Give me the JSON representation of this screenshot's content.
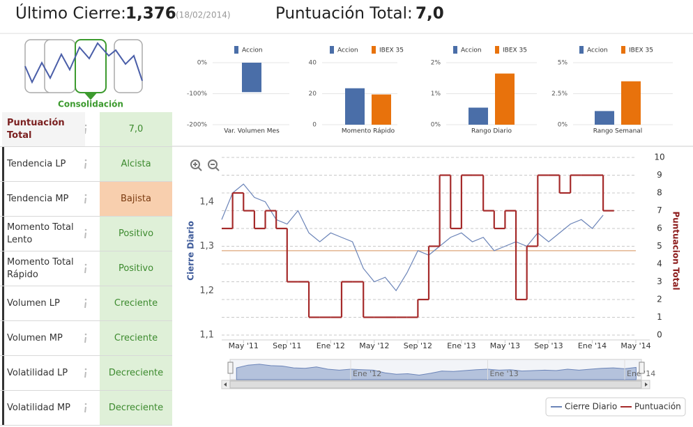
{
  "header": {
    "label1": "Último Cierre:",
    "value1": "1,376",
    "date": "(18/02/2014)",
    "label2": "Puntuación Total:",
    "value2": "7,0"
  },
  "icon_label": "Consolidación",
  "table": {
    "rows": [
      {
        "label": "Puntuación Total",
        "value": "7,0",
        "color": "#dff0d8"
      },
      {
        "label": "Tendencia LP",
        "value": "Alcista",
        "color": "#dff0d8"
      },
      {
        "label": "Tendencia MP",
        "value": "Bajista",
        "color": "#f8cfae"
      },
      {
        "label": "Momento Total Lento",
        "value": "Positivo",
        "color": "#dff0d8"
      },
      {
        "label": "Momento Total Rápido",
        "value": "Positivo",
        "color": "#dff0d8"
      },
      {
        "label": "Volumen LP",
        "value": "Creciente",
        "color": "#dff0d8"
      },
      {
        "label": "Volumen MP",
        "value": "Creciente",
        "color": "#dff0d8"
      },
      {
        "label": "Volatilidad LP",
        "value": "Decreciente",
        "color": "#dff0d8"
      },
      {
        "label": "Volatilidad MP",
        "value": "Decreciente",
        "color": "#dff0d8"
      }
    ]
  },
  "chart_data": [
    {
      "type": "bar",
      "categories": [
        "Var. Volumen Mes"
      ],
      "series": [
        {
          "name": "Accion",
          "color": "#4a6ea8",
          "values": [
            -95
          ]
        }
      ],
      "ylim": [
        -200,
        0
      ],
      "yticks": [
        {
          "value": 0,
          "label": "0%"
        },
        {
          "value": -100,
          "label": "-100%"
        },
        {
          "value": -200,
          "label": "-200%"
        }
      ]
    },
    {
      "type": "bar",
      "categories": [
        "Momento Rápido"
      ],
      "series": [
        {
          "name": "Accion",
          "color": "#4a6ea8",
          "values": [
            23.5
          ]
        },
        {
          "name": "IBEX 35",
          "color": "#e8720c",
          "values": [
            19.5
          ]
        }
      ],
      "ylim": [
        0,
        40
      ],
      "yticks": [
        0,
        20,
        40
      ]
    },
    {
      "type": "bar",
      "categories": [
        "Rango Diario"
      ],
      "series": [
        {
          "name": "Accion",
          "color": "#4a6ea8",
          "values": [
            0.55
          ]
        },
        {
          "name": "IBEX 35",
          "color": "#e8720c",
          "values": [
            1.65
          ]
        }
      ],
      "ylim": [
        0,
        2
      ],
      "yticks": [
        {
          "value": 0,
          "label": "0%"
        },
        {
          "value": 1,
          "label": "1%"
        },
        {
          "value": 2,
          "label": "2%"
        }
      ]
    },
    {
      "type": "bar",
      "categories": [
        "Rango Semanal"
      ],
      "series": [
        {
          "name": "Accion",
          "color": "#4a6ea8",
          "values": [
            1.1
          ]
        },
        {
          "name": "IBEX 35",
          "color": "#e8720c",
          "values": [
            3.5
          ]
        }
      ],
      "ylim": [
        0,
        5
      ],
      "yticks": [
        {
          "value": 0,
          "label": "0%"
        },
        {
          "value": 2.5,
          "label": "2.5%"
        },
        {
          "value": 5,
          "label": "5%"
        }
      ]
    },
    {
      "type": "line",
      "y_label": "Cierre Diario",
      "y2_label": "Puntuacion Total",
      "x": [
        "2011-03",
        "2011-04",
        "2011-05",
        "2011-06",
        "2011-07",
        "2011-08",
        "2011-09",
        "2011-10",
        "2011-11",
        "2011-12",
        "2012-01",
        "2012-02",
        "2012-03",
        "2012-04",
        "2012-05",
        "2012-06",
        "2012-07",
        "2012-08",
        "2012-09",
        "2012-10",
        "2012-11",
        "2012-12",
        "2013-01",
        "2013-02",
        "2013-03",
        "2013-04",
        "2013-05",
        "2013-06",
        "2013-07",
        "2013-08",
        "2013-09",
        "2013-10",
        "2013-11",
        "2013-12",
        "2014-01",
        "2014-02"
      ],
      "series": [
        {
          "name": "Cierre Diario",
          "color": "#6b84b8",
          "values": [
            1.36,
            1.42,
            1.44,
            1.41,
            1.4,
            1.36,
            1.35,
            1.38,
            1.33,
            1.31,
            1.33,
            1.32,
            1.31,
            1.25,
            1.22,
            1.23,
            1.2,
            1.24,
            1.29,
            1.28,
            1.3,
            1.32,
            1.33,
            1.31,
            1.32,
            1.29,
            1.3,
            1.31,
            1.3,
            1.33,
            1.31,
            1.33,
            1.35,
            1.36,
            1.34,
            1.37
          ]
        },
        {
          "name": "Puntuación",
          "color": "#a52a2a",
          "axis": "y2",
          "step": true,
          "values": [
            6,
            8,
            7,
            6,
            7,
            6,
            3,
            3,
            1,
            1,
            1,
            3,
            3,
            1,
            1,
            1,
            1,
            1,
            2,
            5,
            9,
            6,
            9,
            9,
            7,
            6,
            7,
            2,
            5,
            9,
            9,
            8,
            9,
            9,
            9,
            7
          ]
        }
      ],
      "xlim": [
        "2011-03",
        "2014-05"
      ],
      "xticks": [
        {
          "value": "2011-05",
          "label": "May '11"
        },
        {
          "value": "2011-09",
          "label": "Sep '11"
        },
        {
          "value": "2012-01",
          "label": "Ene '12"
        },
        {
          "value": "2012-05",
          "label": "May '12"
        },
        {
          "value": "2012-09",
          "label": "Sep '12"
        },
        {
          "value": "2013-01",
          "label": "Ene '13"
        },
        {
          "value": "2013-05",
          "label": "May '13"
        },
        {
          "value": "2013-09",
          "label": "Sep '13"
        },
        {
          "value": "2014-01",
          "label": "Ene '14"
        },
        {
          "value": "2014-05",
          "label": "May '14"
        }
      ],
      "ylim": [
        1.1,
        1.5
      ],
      "yticks": [
        {
          "value": 1.1,
          "label": "1,1"
        },
        {
          "value": 1.2,
          "label": "1,2"
        },
        {
          "value": 1.3,
          "label": "1,3"
        },
        {
          "value": 1.4,
          "label": "1,4"
        }
      ],
      "y2lim": [
        0,
        10
      ],
      "y2ticks": [
        0,
        1,
        2,
        3,
        4,
        5,
        6,
        7,
        8,
        9,
        10
      ],
      "reference_line": {
        "value": 1.29,
        "color": "#e2b48e"
      },
      "grid": true,
      "navigator_ticks": [
        {
          "value": "2012-01",
          "label": "Ene '12"
        },
        {
          "value": "2013-01",
          "label": "Ene '13"
        },
        {
          "value": "2014-01",
          "label": "Ene '14"
        }
      ],
      "legend": "bottom-right"
    }
  ]
}
